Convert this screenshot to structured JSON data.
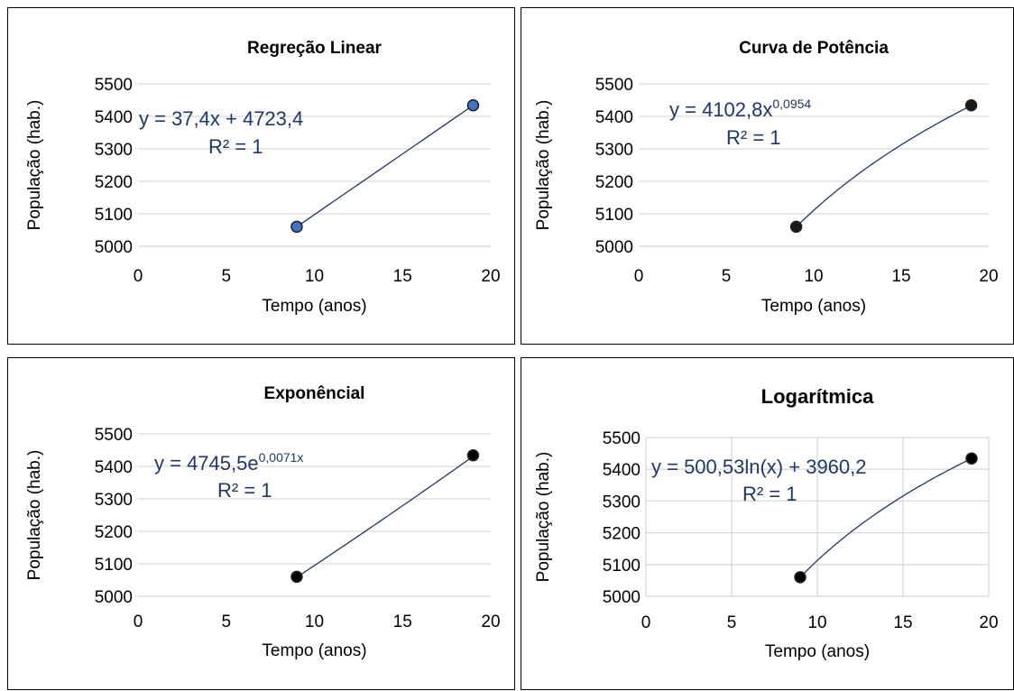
{
  "chart_data": [
    {
      "type": "scatter",
      "title": "Regreção Linear",
      "xlabel": "Tempo (anos)",
      "ylabel": "População (hab.)",
      "xlim": [
        0,
        20
      ],
      "xticks": [
        0,
        5,
        10,
        15,
        20
      ],
      "ylim": [
        5000,
        5500
      ],
      "yticks": [
        5000,
        5100,
        5200,
        5300,
        5400,
        5500
      ],
      "grid": "horizontal",
      "points": [
        {
          "x": 9,
          "y": 5060
        },
        {
          "x": 19,
          "y": 5434
        }
      ],
      "marker_color": "#4472c4",
      "trendline": {
        "kind": "linear",
        "a": 37.4,
        "b": 4723.4
      },
      "equation": {
        "main": "y = 37,4x + 4723,4",
        "sup": "",
        "r2": "R² = 1"
      }
    },
    {
      "type": "scatter",
      "title": "Curva de Potência",
      "xlabel": "Tempo (anos)",
      "ylabel": "População (hab.)",
      "xlim": [
        0,
        20
      ],
      "xticks": [
        0,
        5,
        10,
        15,
        20
      ],
      "ylim": [
        5000,
        5500
      ],
      "yticks": [
        5000,
        5100,
        5200,
        5300,
        5400,
        5500
      ],
      "grid": "horizontal",
      "points": [
        {
          "x": 9,
          "y": 5060
        },
        {
          "x": 19,
          "y": 5434
        }
      ],
      "marker_color": "#1a1a1a",
      "trendline": {
        "kind": "power",
        "a": 4102.8,
        "b": 0.0954
      },
      "equation": {
        "main": "y = 4102,8x",
        "sup": "0,0954",
        "r2": "R² = 1"
      }
    },
    {
      "type": "scatter",
      "title": "Exponêncial",
      "xlabel": "Tempo (anos)",
      "ylabel": "População (hab.)",
      "xlim": [
        0,
        20
      ],
      "xticks": [
        0,
        5,
        10,
        15,
        20
      ],
      "ylim": [
        5000,
        5500
      ],
      "yticks": [
        5000,
        5100,
        5200,
        5300,
        5400,
        5500
      ],
      "grid": "horizontal",
      "points": [
        {
          "x": 9,
          "y": 5060
        },
        {
          "x": 19,
          "y": 5434
        }
      ],
      "marker_color": "#000000",
      "trendline": {
        "kind": "exponential",
        "a": 4745.5,
        "b": 0.0071
      },
      "equation": {
        "main": "y = 4745,5e",
        "sup": "0,0071x",
        "r2": "R² = 1"
      }
    },
    {
      "type": "scatter",
      "title": "Logarítmica",
      "xlabel": "Tempo (anos)",
      "ylabel": "População (hab.)",
      "xlim": [
        0,
        20
      ],
      "xticks": [
        0,
        5,
        10,
        15,
        20
      ],
      "ylim": [
        5000,
        5500
      ],
      "yticks": [
        5000,
        5100,
        5200,
        5300,
        5400,
        5500
      ],
      "grid": "both",
      "points": [
        {
          "x": 9,
          "y": 5060
        },
        {
          "x": 19,
          "y": 5434
        }
      ],
      "marker_color": "#000000",
      "trendline": {
        "kind": "logarithmic",
        "a": 500.53,
        "b": 3960.2
      },
      "equation": {
        "main": "y = 500,53ln(x) + 3960,2",
        "sup": "",
        "r2": "R² = 1"
      }
    }
  ]
}
